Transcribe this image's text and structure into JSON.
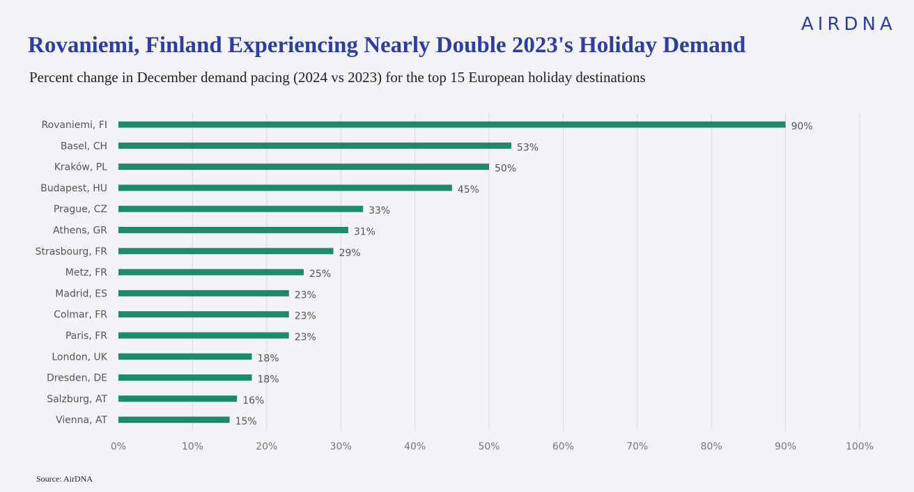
{
  "header": {
    "logo": "AIRDNA",
    "title": "Rovaniemi, Finland Experiencing Nearly Double 2023's Holiday Demand",
    "subtitle": "Percent change in December demand pacing (2024 vs 2023) for the top 15 European holiday destinations"
  },
  "footer": {
    "source": "Source: AirDNA"
  },
  "colors": {
    "bar": "#1f8a6a",
    "title": "#2d3e9e",
    "background": "#f3f3f7"
  },
  "chart_data": {
    "type": "bar",
    "orientation": "horizontal",
    "title": "Rovaniemi, Finland Experiencing Nearly Double 2023's Holiday Demand",
    "subtitle": "Percent change in December demand pacing (2024 vs 2023) for the top 15 European holiday destinations",
    "xlabel": "",
    "ylabel": "",
    "categories": [
      "Rovaniemi, FI",
      "Basel, CH",
      "Kraków, PL",
      "Budapest, HU",
      "Prague, CZ",
      "Athens, GR",
      "Strasbourg, FR",
      "Metz, FR",
      "Madrid, ES",
      "Colmar, FR",
      "Paris, FR",
      "London, UK",
      "Dresden, DE",
      "Salzburg, AT",
      "Vienna, AT"
    ],
    "values": [
      90,
      53,
      50,
      45,
      33,
      31,
      29,
      25,
      23,
      23,
      23,
      18,
      18,
      16,
      15
    ],
    "value_labels": [
      "90%",
      "53%",
      "50%",
      "45%",
      "33%",
      "31%",
      "29%",
      "25%",
      "23%",
      "23%",
      "23%",
      "18%",
      "18%",
      "16%",
      "15%"
    ],
    "xlim": [
      0,
      100
    ],
    "x_ticks": [
      0,
      10,
      20,
      30,
      40,
      50,
      60,
      70,
      80,
      90,
      100
    ],
    "x_tick_labels": [
      "0%",
      "10%",
      "20%",
      "30%",
      "40%",
      "50%",
      "60%",
      "70%",
      "80%",
      "90%",
      "100%"
    ],
    "grid": true,
    "legend": "none"
  }
}
